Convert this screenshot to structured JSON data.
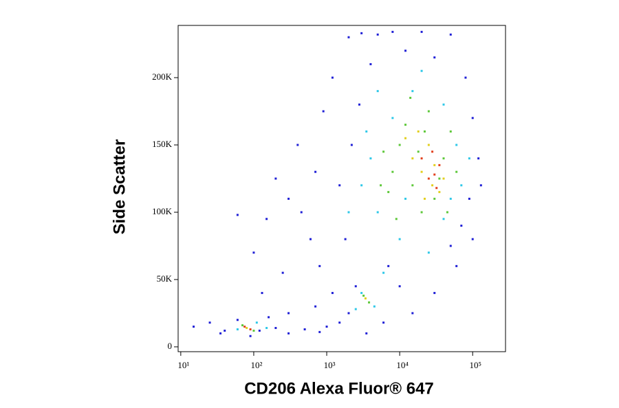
{
  "chart_data": {
    "type": "scatter",
    "x_label": "CD206 Alexa Fluor® 647",
    "y_label": "Side Scatter",
    "xscale": "log",
    "xlim": [
      9.2,
      282000
    ],
    "ylim": [
      -3600,
      238800
    ],
    "xticks": [
      {
        "value": 10,
        "label": "10¹"
      },
      {
        "value": 100,
        "label": "10²"
      },
      {
        "value": 1000,
        "label": "10³"
      },
      {
        "value": 10000,
        "label": "10⁴"
      },
      {
        "value": 100000,
        "label": "10⁵"
      }
    ],
    "yticks": [
      {
        "value": 0,
        "label": "0"
      },
      {
        "value": 50000,
        "label": "50K"
      },
      {
        "value": 100000,
        "label": "100K"
      },
      {
        "value": 150000,
        "label": "150K"
      },
      {
        "value": 200000,
        "label": "200K"
      }
    ],
    "series": [
      {
        "color": "#1f1fd6",
        "x": [
          15,
          40,
          60,
          120,
          200,
          300,
          500,
          800,
          1500,
          2000,
          1200,
          800,
          600,
          300,
          200,
          150,
          100,
          60,
          130,
          250,
          400,
          450,
          700,
          900,
          1200,
          2000,
          3000,
          5000,
          8000,
          20000,
          50000,
          80000,
          100000,
          120000,
          90000,
          100000,
          60000,
          30000,
          15000,
          6000,
          3500,
          2500,
          1800,
          2200,
          2800,
          4000,
          7000,
          10000,
          70000,
          130000,
          50000,
          1500,
          700,
          300,
          1000,
          25,
          35,
          160,
          90,
          30000,
          12000
        ],
        "values": [
          15000,
          12000,
          20000,
          12000,
          14000,
          10000,
          13000,
          11000,
          18000,
          25000,
          40000,
          60000,
          80000,
          110000,
          125000,
          95000,
          70000,
          98000,
          40000,
          55000,
          150000,
          100000,
          130000,
          175000,
          200000,
          230000,
          233000,
          232000,
          234000,
          234000,
          232000,
          200000,
          170000,
          140000,
          110000,
          80000,
          60000,
          40000,
          25000,
          18000,
          10000,
          45000,
          80000,
          150000,
          180000,
          210000,
          60000,
          45000,
          90000,
          120000,
          75000,
          120000,
          30000,
          25000,
          15000,
          18000,
          10000,
          22000,
          8000,
          215000,
          220000
        ]
      },
      {
        "color": "#2ec8e8",
        "x": [
          60,
          110,
          150,
          3000,
          4500,
          2500,
          5000,
          8000,
          15000,
          40000,
          60000,
          70000,
          40000,
          10000,
          4000,
          3000,
          20000,
          6000,
          2000,
          25000,
          12000,
          90000,
          5000,
          50000,
          3500
        ],
        "values": [
          13000,
          18000,
          14000,
          40000,
          30000,
          28000,
          100000,
          170000,
          190000,
          180000,
          150000,
          120000,
          95000,
          80000,
          140000,
          120000,
          205000,
          55000,
          100000,
          70000,
          110000,
          140000,
          190000,
          110000,
          160000
        ]
      },
      {
        "color": "#5ec83a",
        "x": [
          70,
          100,
          3200,
          3800,
          8000,
          10000,
          12000,
          15000,
          20000,
          30000,
          40000,
          50000,
          25000,
          6000,
          7000,
          18000,
          35000,
          45000,
          9000,
          14000,
          60000,
          22000,
          5500
        ],
        "values": [
          16000,
          12000,
          38000,
          33000,
          130000,
          150000,
          165000,
          120000,
          100000,
          110000,
          140000,
          160000,
          175000,
          145000,
          115000,
          145000,
          125000,
          100000,
          95000,
          185000,
          130000,
          160000,
          120000
        ]
      },
      {
        "color": "#e2cf1e",
        "x": [
          80,
          3400,
          15000,
          20000,
          25000,
          30000,
          35000,
          28000,
          12000,
          18000,
          40000,
          22000
        ],
        "values": [
          14000,
          36000,
          140000,
          130000,
          150000,
          135000,
          115000,
          120000,
          155000,
          160000,
          125000,
          110000
        ]
      },
      {
        "color": "#e2401e",
        "x": [
          75,
          90,
          25000,
          30000,
          20000,
          35000,
          28000,
          32000
        ],
        "values": [
          15000,
          13000,
          125000,
          128000,
          140000,
          135000,
          145000,
          118000
        ]
      }
    ]
  }
}
